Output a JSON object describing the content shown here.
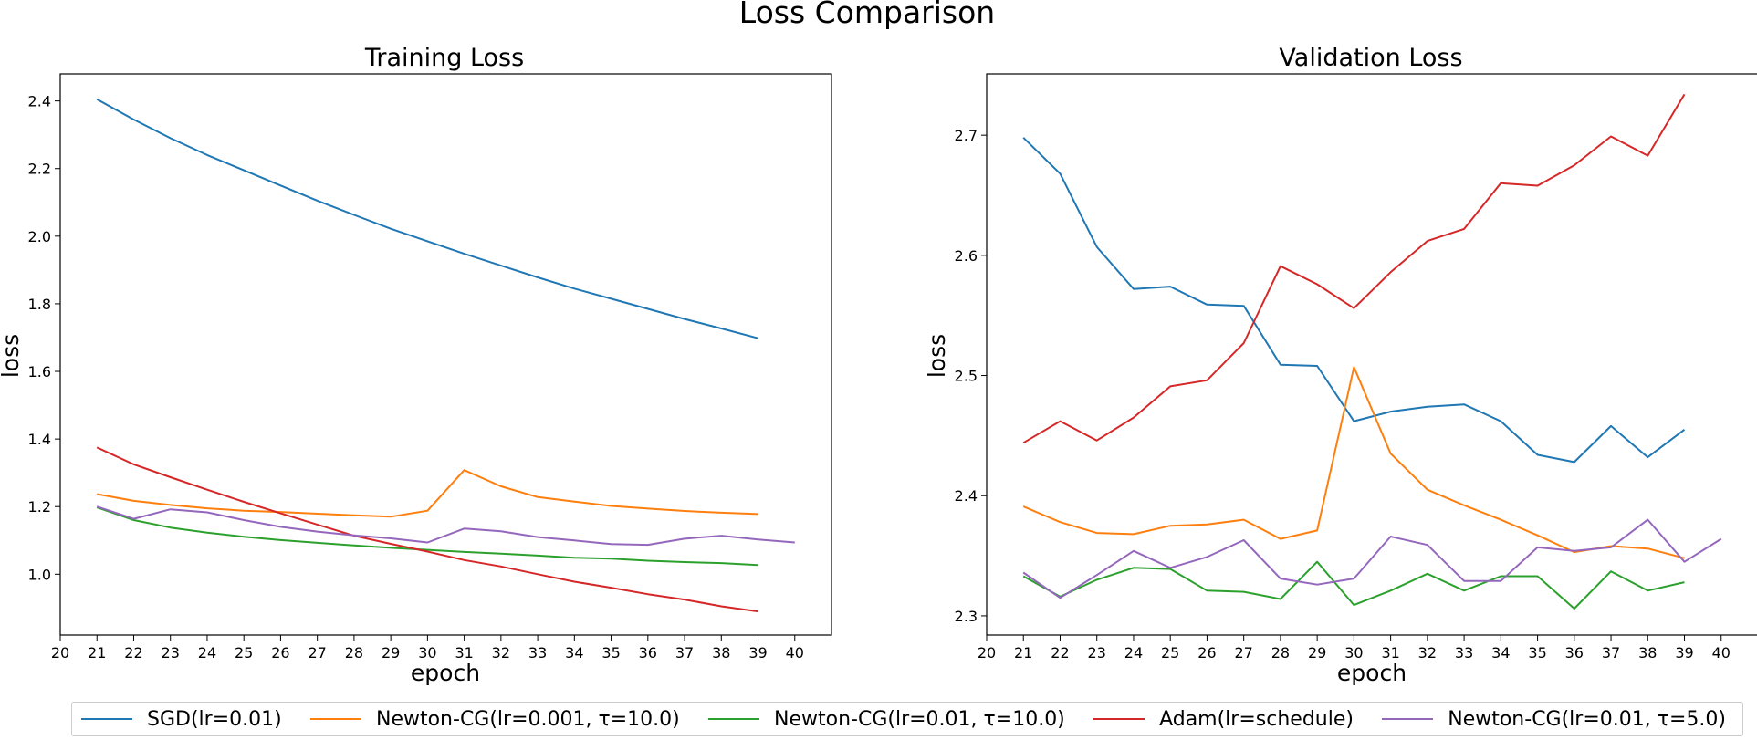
{
  "suptitle": "Loss Comparison",
  "colors": {
    "SGD": "#1f77b4",
    "NewtonCG_lr0.001_tau10": "#ff7f0e",
    "NewtonCG_lr0.01_tau10": "#2ca02c",
    "Adam": "#d62728",
    "NewtonCG_lr0.01_tau5": "#9467bd"
  },
  "legend": [
    {
      "label": "SGD(lr=0.01)",
      "color": "#1f77b4"
    },
    {
      "label": "Newton-CG(lr=0.001, τ=10.0)",
      "color": "#ff7f0e"
    },
    {
      "label": "Newton-CG(lr=0.01, τ=10.0)",
      "color": "#2ca02c"
    },
    {
      "label": "Adam(lr=schedule)",
      "color": "#d62728"
    },
    {
      "label": "Newton-CG(lr=0.01, τ=5.0)",
      "color": "#9467bd"
    }
  ],
  "legend_position": "lower center",
  "chart_data": [
    {
      "type": "line",
      "title": "Training Loss",
      "xlabel": "epoch",
      "ylabel": "loss",
      "xlim": [
        20,
        41
      ],
      "ylim": [
        0.82,
        2.48
      ],
      "xticks": [
        20,
        21,
        22,
        23,
        24,
        25,
        26,
        27,
        28,
        29,
        30,
        31,
        32,
        33,
        34,
        35,
        36,
        37,
        38,
        39,
        40
      ],
      "yticks": [
        1.0,
        1.2,
        1.4,
        1.6,
        1.8,
        2.0,
        2.2,
        2.4
      ],
      "ytick_labels": [
        "1.0",
        "1.2",
        "1.4",
        "1.6",
        "1.8",
        "2.0",
        "2.2",
        "2.4"
      ],
      "grid": false,
      "series": [
        {
          "name": "SGD(lr=0.01)",
          "color": "#1f77b4",
          "x": [
            21,
            22,
            23,
            24,
            25,
            26,
            27,
            28,
            29,
            30,
            31,
            32,
            33,
            34,
            35,
            36,
            37,
            38,
            39
          ],
          "values": [
            2.405,
            2.345,
            2.29,
            2.24,
            2.195,
            2.15,
            2.105,
            2.063,
            2.022,
            1.985,
            1.948,
            1.913,
            1.878,
            1.845,
            1.815,
            1.785,
            1.755,
            1.727,
            1.698
          ]
        },
        {
          "name": "Newton-CG(lr=0.001, τ=10.0)",
          "color": "#ff7f0e",
          "x": [
            21,
            22,
            23,
            24,
            25,
            26,
            27,
            28,
            29,
            30,
            31,
            32,
            33,
            34,
            35,
            36,
            37,
            38,
            39
          ],
          "values": [
            1.237,
            1.217,
            1.205,
            1.195,
            1.188,
            1.184,
            1.179,
            1.174,
            1.17,
            1.188,
            1.308,
            1.26,
            1.228,
            1.215,
            1.202,
            1.194,
            1.187,
            1.182,
            1.178
          ]
        },
        {
          "name": "Newton-CG(lr=0.01, τ=10.0)",
          "color": "#2ca02c",
          "x": [
            21,
            22,
            23,
            24,
            25,
            26,
            27,
            28,
            29,
            30,
            31,
            32,
            33,
            34,
            35,
            36,
            37,
            38,
            39
          ],
          "values": [
            1.198,
            1.16,
            1.138,
            1.123,
            1.111,
            1.101,
            1.093,
            1.085,
            1.078,
            1.072,
            1.066,
            1.061,
            1.055,
            1.049,
            1.046,
            1.04,
            1.036,
            1.033,
            1.027
          ]
        },
        {
          "name": "Adam(lr=schedule)",
          "color": "#d62728",
          "x": [
            21,
            22,
            23,
            24,
            25,
            26,
            27,
            28,
            29,
            30,
            31,
            32,
            33,
            34,
            35,
            36,
            37,
            38,
            39
          ],
          "values": [
            1.375,
            1.325,
            1.287,
            1.25,
            1.214,
            1.18,
            1.147,
            1.114,
            1.09,
            1.067,
            1.042,
            1.023,
            1.0,
            0.978,
            0.96,
            0.941,
            0.925,
            0.905,
            0.89
          ]
        },
        {
          "name": "Newton-CG(lr=0.01, τ=5.0)",
          "color": "#9467bd",
          "x": [
            21,
            22,
            23,
            24,
            25,
            26,
            27,
            28,
            29,
            30,
            31,
            32,
            33,
            34,
            35,
            36,
            37,
            38,
            39,
            40
          ],
          "values": [
            1.2,
            1.164,
            1.192,
            1.183,
            1.16,
            1.14,
            1.126,
            1.115,
            1.106,
            1.094,
            1.135,
            1.127,
            1.11,
            1.1,
            1.089,
            1.087,
            1.105,
            1.114,
            1.103,
            1.094
          ]
        }
      ]
    },
    {
      "type": "line",
      "title": "Validation Loss",
      "xlabel": "epoch",
      "ylabel": "loss",
      "xlim": [
        20,
        41
      ],
      "ylim": [
        2.284,
        2.751
      ],
      "xticks": [
        20,
        21,
        22,
        23,
        24,
        25,
        26,
        27,
        28,
        29,
        30,
        31,
        32,
        33,
        34,
        35,
        36,
        37,
        38,
        39,
        40
      ],
      "yticks": [
        2.3,
        2.4,
        2.5,
        2.6,
        2.7
      ],
      "ytick_labels": [
        "2.3",
        "2.4",
        "2.5",
        "2.6",
        "2.7"
      ],
      "grid": false,
      "series": [
        {
          "name": "SGD(lr=0.01)",
          "color": "#1f77b4",
          "x": [
            21,
            22,
            23,
            24,
            25,
            26,
            27,
            28,
            29,
            30,
            31,
            32,
            33,
            34,
            35,
            36,
            37,
            38,
            39
          ],
          "values": [
            2.698,
            2.668,
            2.607,
            2.572,
            2.574,
            2.559,
            2.558,
            2.509,
            2.508,
            2.462,
            2.47,
            2.474,
            2.476,
            2.462,
            2.434,
            2.428,
            2.458,
            2.432,
            2.455
          ]
        },
        {
          "name": "Newton-CG(lr=0.001, τ=10.0)",
          "color": "#ff7f0e",
          "x": [
            21,
            22,
            23,
            24,
            25,
            26,
            27,
            28,
            29,
            30,
            31,
            32,
            33,
            34,
            35,
            36,
            37,
            38,
            39
          ],
          "values": [
            2.391,
            2.378,
            2.369,
            2.368,
            2.375,
            2.376,
            2.38,
            2.364,
            2.371,
            2.507,
            2.435,
            2.405,
            2.392,
            2.38,
            2.367,
            2.353,
            2.358,
            2.356,
            2.348
          ]
        },
        {
          "name": "Newton-CG(lr=0.01, τ=10.0)",
          "color": "#2ca02c",
          "x": [
            21,
            22,
            23,
            24,
            25,
            26,
            27,
            28,
            29,
            30,
            31,
            32,
            33,
            34,
            35,
            36,
            37,
            38,
            39
          ],
          "values": [
            2.333,
            2.316,
            2.33,
            2.34,
            2.339,
            2.321,
            2.32,
            2.314,
            2.345,
            2.309,
            2.321,
            2.335,
            2.321,
            2.333,
            2.333,
            2.306,
            2.337,
            2.321,
            2.328
          ]
        },
        {
          "name": "Adam(lr=schedule)",
          "color": "#d62728",
          "x": [
            21,
            22,
            23,
            24,
            25,
            26,
            27,
            28,
            29,
            30,
            31,
            32,
            33,
            34,
            35,
            36,
            37,
            38,
            39
          ],
          "values": [
            2.444,
            2.462,
            2.446,
            2.465,
            2.491,
            2.496,
            2.527,
            2.591,
            2.576,
            2.556,
            2.586,
            2.612,
            2.622,
            2.66,
            2.658,
            2.675,
            2.699,
            2.683,
            2.734
          ]
        },
        {
          "name": "Newton-CG(lr=0.01, τ=5.0)",
          "color": "#9467bd",
          "x": [
            21,
            22,
            23,
            24,
            25,
            26,
            27,
            28,
            29,
            30,
            31,
            32,
            33,
            34,
            35,
            36,
            37,
            38,
            39,
            40
          ],
          "values": [
            2.336,
            2.315,
            2.334,
            2.354,
            2.34,
            2.349,
            2.363,
            2.331,
            2.326,
            2.331,
            2.366,
            2.359,
            2.329,
            2.329,
            2.357,
            2.354,
            2.357,
            2.38,
            2.345,
            2.364
          ]
        }
      ]
    }
  ]
}
